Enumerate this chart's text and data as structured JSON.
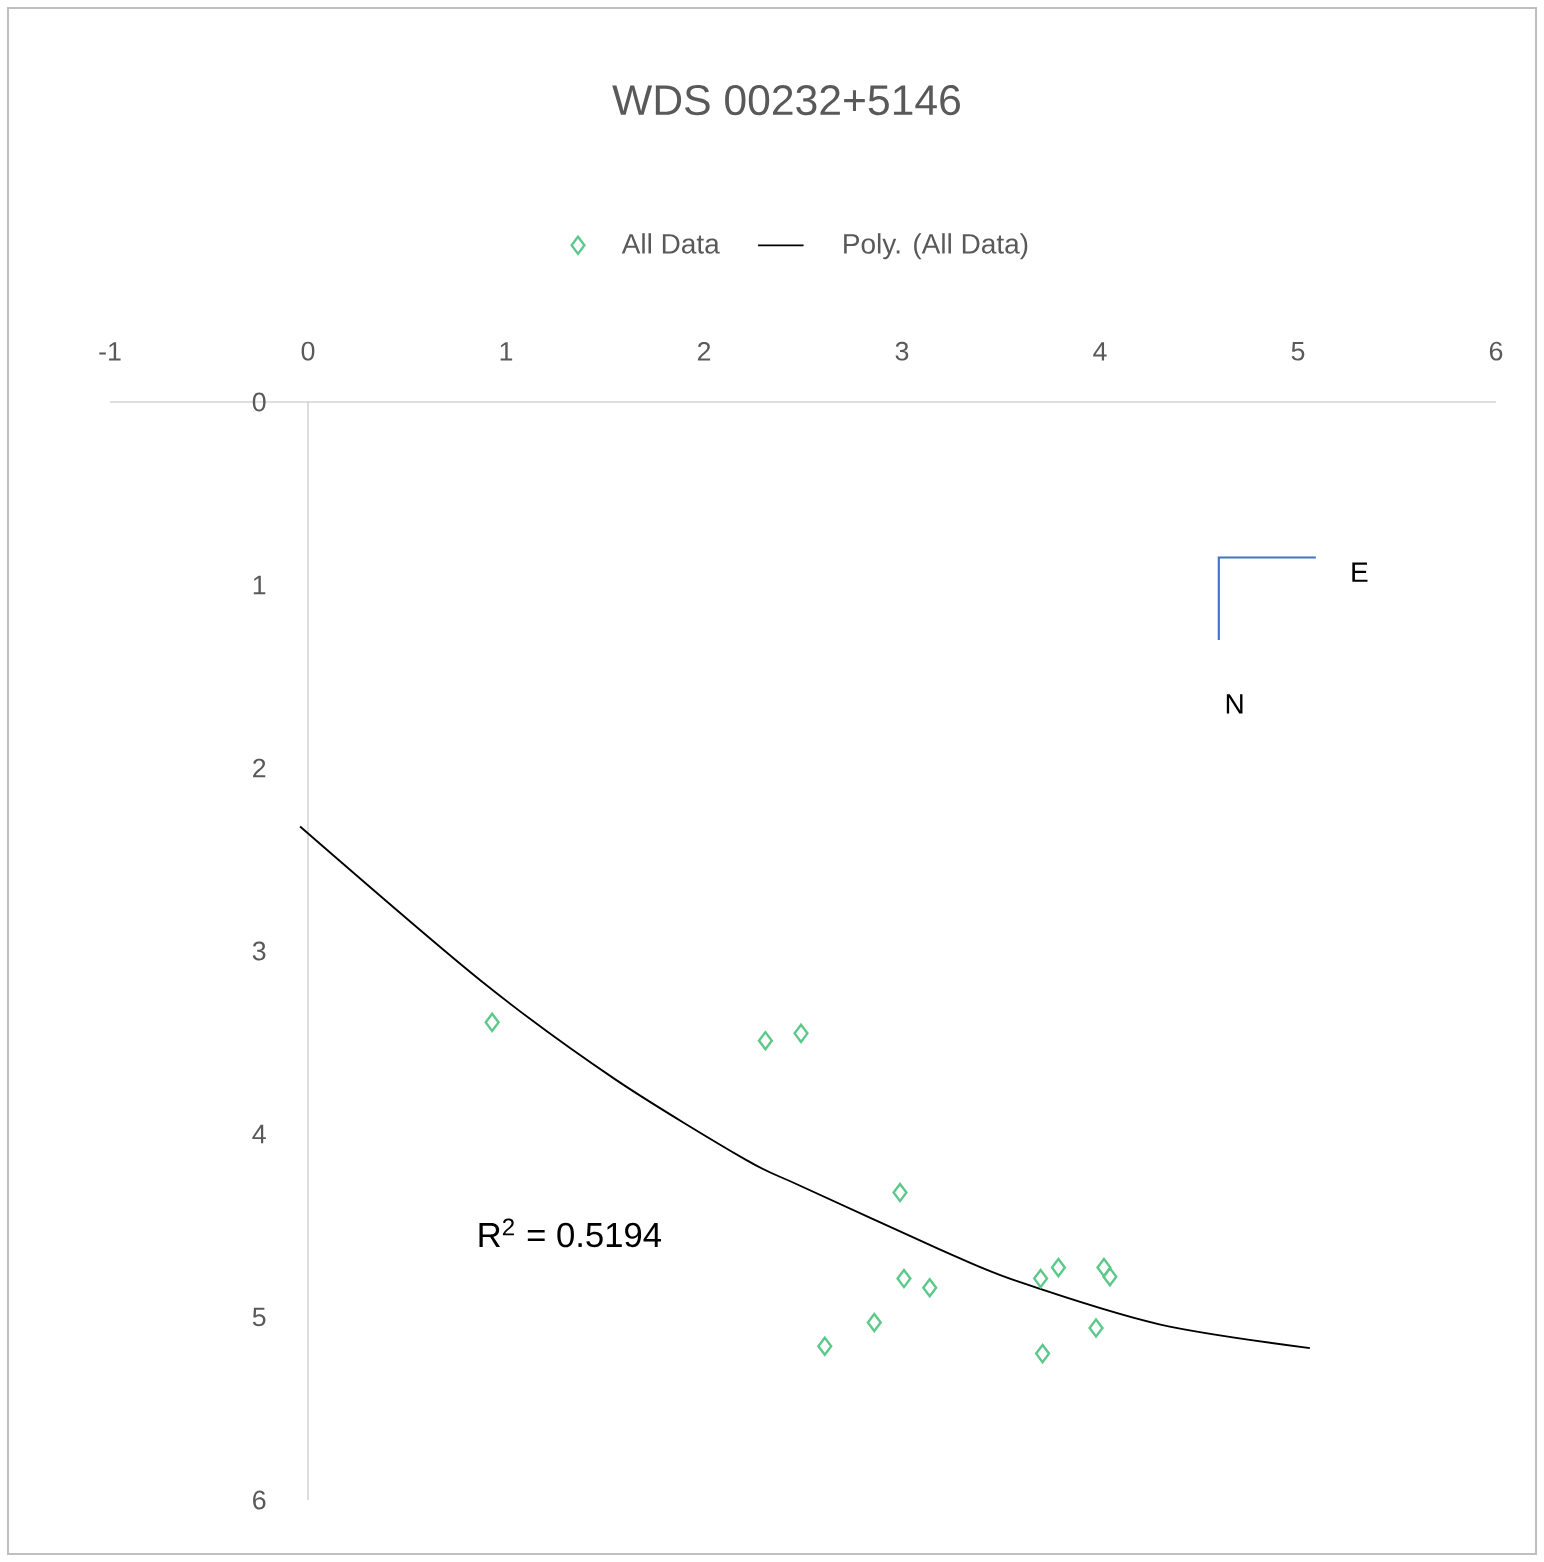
{
  "chart_data": {
    "type": "scatter",
    "title": "WDS 00232+5146",
    "xlim": [
      -1,
      6
    ],
    "ylim": [
      6,
      0
    ],
    "xticks": [
      -1,
      0,
      1,
      2,
      3,
      4,
      5,
      6
    ],
    "yticks": [
      0,
      1,
      2,
      3,
      4,
      5,
      6
    ],
    "grid": false,
    "legend": "top",
    "marker": "diamond",
    "series": [
      {
        "name": "All Data",
        "color": "#5cc98a",
        "x": [
          0.93,
          2.31,
          2.49,
          2.99,
          3.01,
          3.14,
          2.86,
          2.61,
          3.7,
          3.79,
          4.02,
          4.05,
          3.98,
          3.71
        ],
        "values": [
          3.39,
          3.49,
          3.45,
          4.32,
          4.79,
          4.84,
          5.03,
          5.16,
          4.79,
          4.73,
          4.73,
          4.78,
          5.06,
          5.2
        ]
      },
      {
        "name": "Poly. (All Data)",
        "type": "line",
        "color": "#000000",
        "line_style": "solid",
        "marker": "none",
        "x": [
          -0.04,
          0.87,
          1.55,
          2.21,
          2.48,
          3.19,
          3.57,
          4.3,
          5.06
        ],
        "values": [
          2.32,
          3.16,
          3.7,
          4.14,
          4.28,
          4.63,
          4.8,
          5.04,
          5.17
        ]
      }
    ],
    "annotations": [
      "R$^{2}$ = 0.5194",
      "E",
      "N"
    ]
  }
}
